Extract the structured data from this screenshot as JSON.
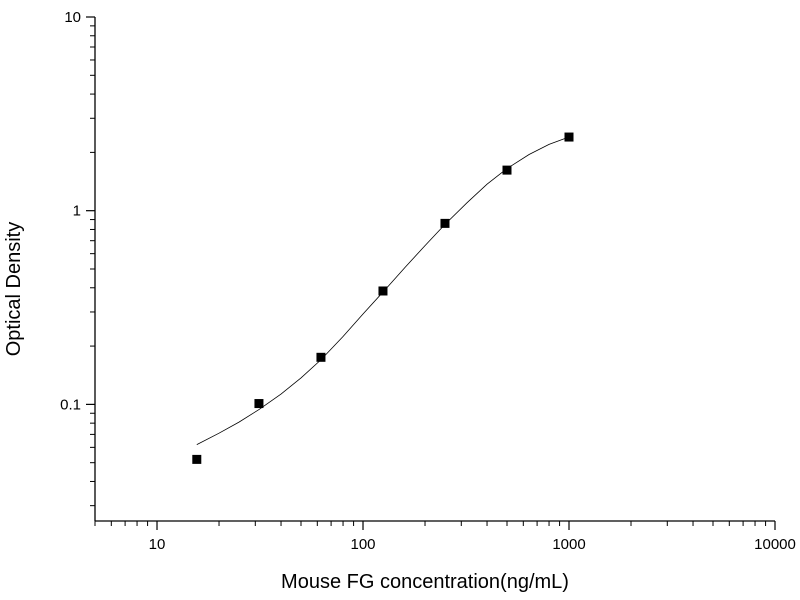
{
  "chart_data": {
    "type": "scatter",
    "xlabel": "Mouse FG concentration(ng/mL)",
    "ylabel": "Optical Density",
    "x_scale": "log",
    "y_scale": "log",
    "xlim": [
      5,
      10000
    ],
    "ylim": [
      0.025,
      10
    ],
    "x_ticks": [
      {
        "value": 10,
        "label": "10"
      },
      {
        "value": 100,
        "label": "100"
      },
      {
        "value": 1000,
        "label": "1000"
      },
      {
        "value": 10000,
        "label": "10000"
      }
    ],
    "y_ticks": [
      {
        "value": 0.1,
        "label": "0.1"
      },
      {
        "value": 1,
        "label": "1"
      },
      {
        "value": 10,
        "label": "10"
      }
    ],
    "grid": false,
    "points": [
      {
        "x": 15.6,
        "y": 0.052
      },
      {
        "x": 31.25,
        "y": 0.101
      },
      {
        "x": 62.5,
        "y": 0.175
      },
      {
        "x": 125,
        "y": 0.385
      },
      {
        "x": 250,
        "y": 0.86
      },
      {
        "x": 500,
        "y": 1.62
      },
      {
        "x": 1000,
        "y": 2.4
      }
    ],
    "fit_curve": [
      {
        "x": 15.6,
        "y": 0.062
      },
      {
        "x": 20,
        "y": 0.071
      },
      {
        "x": 25,
        "y": 0.081
      },
      {
        "x": 31.25,
        "y": 0.094
      },
      {
        "x": 40,
        "y": 0.113
      },
      {
        "x": 50,
        "y": 0.137
      },
      {
        "x": 62.5,
        "y": 0.17
      },
      {
        "x": 80,
        "y": 0.224
      },
      {
        "x": 100,
        "y": 0.293
      },
      {
        "x": 125,
        "y": 0.38
      },
      {
        "x": 160,
        "y": 0.51
      },
      {
        "x": 200,
        "y": 0.66
      },
      {
        "x": 250,
        "y": 0.85
      },
      {
        "x": 320,
        "y": 1.1
      },
      {
        "x": 400,
        "y": 1.37
      },
      {
        "x": 500,
        "y": 1.65
      },
      {
        "x": 640,
        "y": 1.95
      },
      {
        "x": 800,
        "y": 2.2
      },
      {
        "x": 1000,
        "y": 2.4
      }
    ],
    "colors": {
      "marker": "#000000",
      "line": "#000000",
      "axis": "#000000"
    }
  }
}
